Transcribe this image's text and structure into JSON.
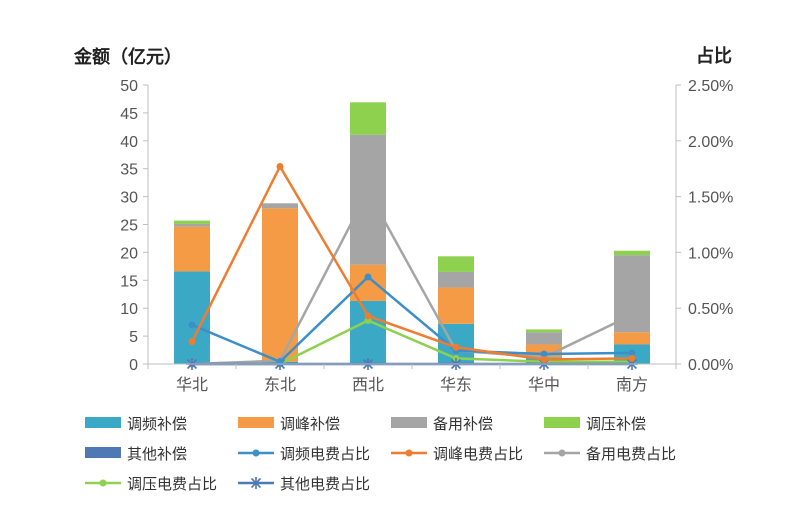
{
  "chart_data": {
    "type": "bar",
    "stacked": true,
    "categories": [
      "华北",
      "东北",
      "西北",
      "华东",
      "华中",
      "南方"
    ],
    "y_left": {
      "title": "金额（亿元）",
      "min": 0,
      "max": 50,
      "step": 5,
      "ticks": [
        "0",
        "5",
        "10",
        "15",
        "20",
        "25",
        "30",
        "35",
        "40",
        "45",
        "50"
      ]
    },
    "y_right": {
      "title": "占比",
      "min": 0,
      "max": 0.025,
      "step": 0.005,
      "ticks": [
        "0.00%",
        "0.50%",
        "1.00%",
        "1.50%",
        "2.00%",
        "2.50%"
      ]
    },
    "bar_series": [
      {
        "name": "调频补偿",
        "color": "#3BA9C5",
        "values": [
          16.6,
          0.4,
          11.3,
          7.2,
          1.2,
          3.5
        ]
      },
      {
        "name": "调峰补偿",
        "color": "#F59B45",
        "values": [
          8.0,
          27.5,
          6.5,
          6.5,
          2.3,
          2.2
        ]
      },
      {
        "name": "备用补偿",
        "color": "#A5A5A5",
        "values": [
          0.5,
          0.9,
          23.3,
          2.8,
          2.2,
          13.8
        ]
      },
      {
        "name": "调压补偿",
        "color": "#8DD14F",
        "values": [
          0.6,
          0,
          5.8,
          2.8,
          0.5,
          0.8
        ]
      },
      {
        "name": "其他补偿",
        "color": "#4F79B5",
        "values": [
          0,
          0,
          0,
          0,
          0,
          0
        ]
      }
    ],
    "line_series": [
      {
        "name": "调频电费占比",
        "color": "#3C8FC9",
        "marker": "dot",
        "values": [
          0.0035,
          0.0002,
          0.0078,
          0.0012,
          0.0009,
          0.001
        ]
      },
      {
        "name": "调峰电费占比",
        "color": "#EE7D31",
        "marker": "dot",
        "values": [
          0.002,
          0.0177,
          0.0043,
          0.0015,
          0.0004,
          0.0005
        ]
      },
      {
        "name": "备用电费占比",
        "color": "#A5A5A5",
        "marker": "dot",
        "values": [
          0.0,
          0.0003,
          0.0155,
          0.0012,
          0.0006,
          0.0044
        ]
      },
      {
        "name": "调压电费占比",
        "color": "#8DD14F",
        "marker": "dot",
        "values": [
          0.0,
          0.0,
          0.0039,
          0.0005,
          0.0002,
          0.0002
        ]
      },
      {
        "name": "其他电费占比",
        "color": "#4F79B5",
        "marker": "star",
        "values": [
          0.0,
          0.0,
          0.0,
          0.0,
          0.0,
          0.0
        ]
      }
    ],
    "legend_position": "bottom"
  }
}
